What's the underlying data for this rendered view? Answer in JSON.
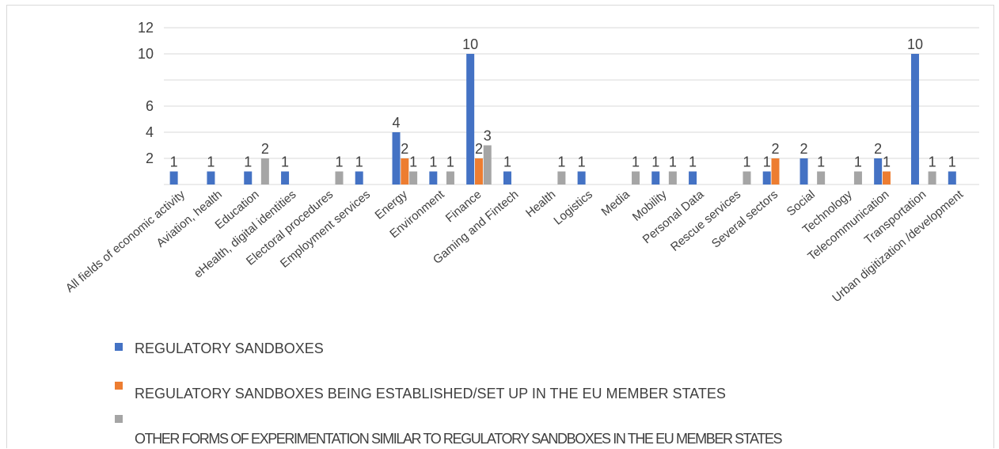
{
  "chart_data": {
    "type": "bar",
    "title": "",
    "xlabel": "",
    "ylabel": "",
    "ylim": [
      0,
      12
    ],
    "yticks": [
      "12",
      "10",
      "6",
      "4",
      "2"
    ],
    "grid": true,
    "legend_position": "bottom",
    "categories": [
      "All fields of economic activity",
      "Aviation, health",
      "Education",
      "eHealth, digital identities",
      "Electoral procedures",
      "Employment services",
      "Energy",
      "Environment",
      "Finance",
      "Gaming and Fintech",
      "Health",
      "Logistics",
      "Media",
      "Mobility",
      "Personal Data",
      "Rescue services",
      "Several sectors",
      "Social",
      "Technology",
      "Telecommunication",
      "Transportation",
      "Urban digitization /development"
    ],
    "series": [
      {
        "name": "REGULATORY SANDBOXES",
        "color": "#4472c4",
        "values": [
          1,
          1,
          1,
          1,
          null,
          1,
          4,
          1,
          10,
          1,
          null,
          1,
          null,
          1,
          1,
          null,
          1,
          2,
          null,
          2,
          10,
          1
        ]
      },
      {
        "name": "REGULATORY SANDBOXES BEING ESTABLISHED/SET UP IN THE EU MEMBER STATES",
        "color": "#ed7d31",
        "values": [
          null,
          null,
          null,
          null,
          null,
          null,
          2,
          null,
          2,
          null,
          null,
          null,
          null,
          null,
          null,
          null,
          2,
          null,
          null,
          1,
          null,
          null
        ]
      },
      {
        "name": "OTHER FORMS OF EXPERIMENTATION SIMILAR TO REGULATORY SANDBOXES IN THE EU MEMBER STATES",
        "color": "#a5a5a5",
        "values": [
          null,
          null,
          2,
          null,
          1,
          null,
          1,
          1,
          3,
          null,
          1,
          null,
          1,
          1,
          null,
          1,
          null,
          1,
          1,
          null,
          1,
          null
        ]
      }
    ]
  }
}
